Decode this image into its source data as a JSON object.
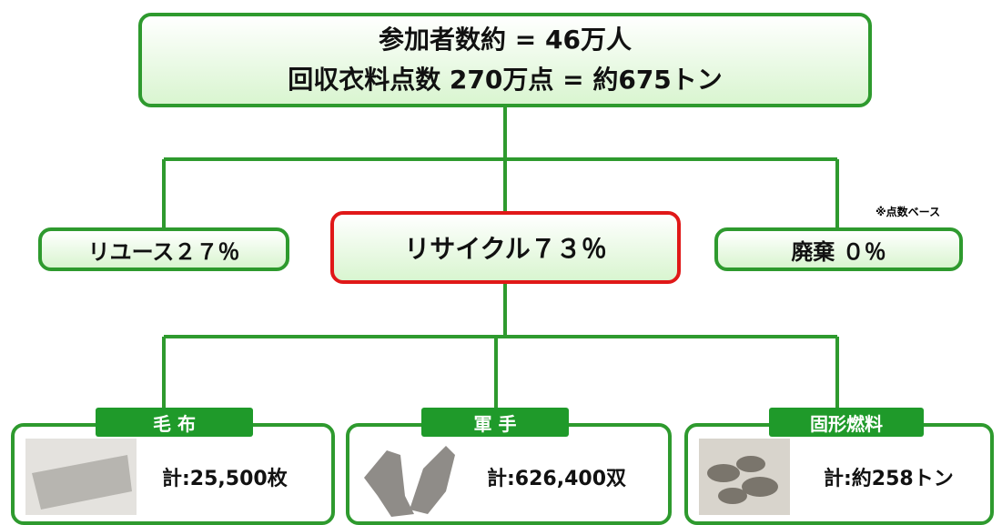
{
  "summary": {
    "lines": [
      "参加者数約 = 46万人",
      "回収衣料点数 270万点 = 約675トン"
    ]
  },
  "note": "※点数ベース",
  "outcomes": [
    {
      "label": "リユース２７％"
    },
    {
      "label": "リサイクル７３％"
    },
    {
      "label": "廃棄 ０％"
    }
  ],
  "products": [
    {
      "tag": "毛 布",
      "total": "計:25,500枚"
    },
    {
      "tag": "軍 手",
      "total": "計:626,400双"
    },
    {
      "tag": "固形燃料",
      "total": "計:約258トン"
    }
  ]
}
